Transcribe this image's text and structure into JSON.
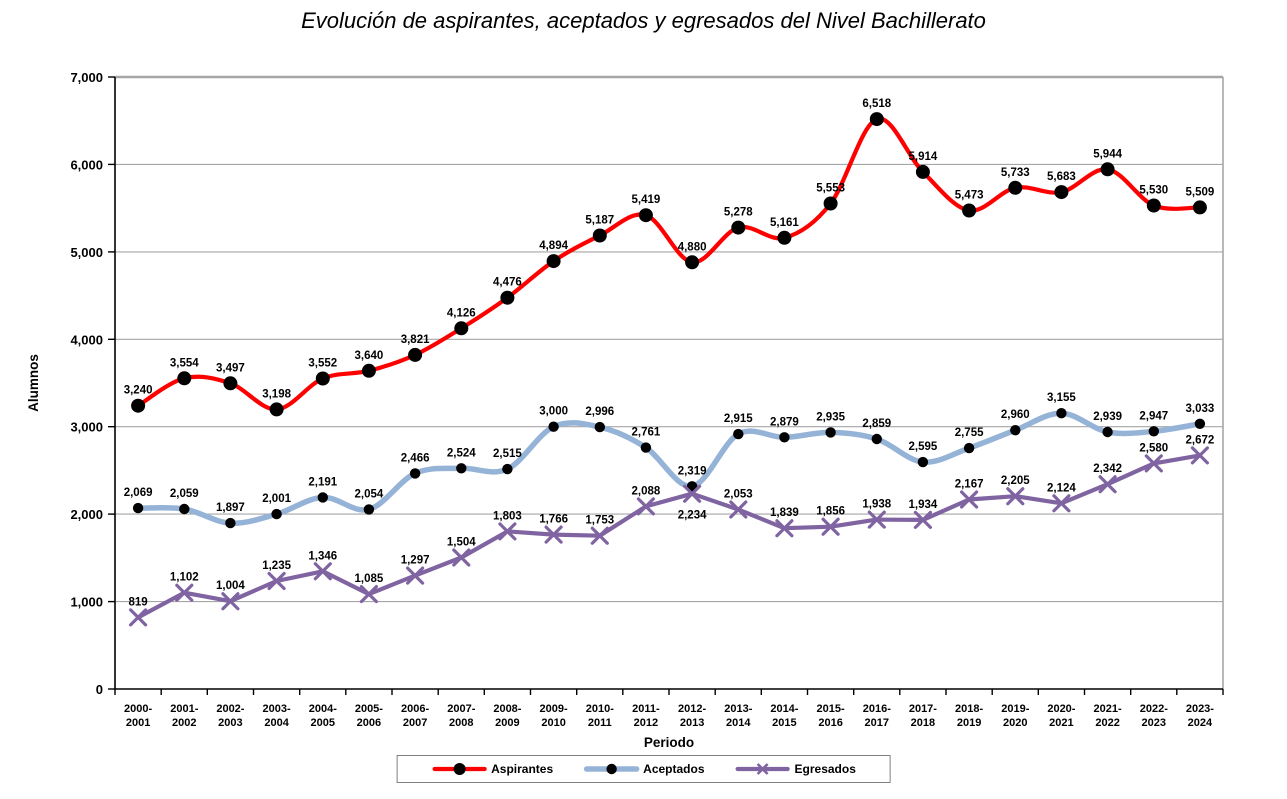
{
  "chart_data": {
    "type": "line",
    "title": "Evolución de aspirantes, aceptados y egresados del Nivel Bachillerato",
    "xlabel": "Periodo",
    "ylabel": "Alumnos",
    "ylim": [
      0,
      7000
    ],
    "ytick_step": 1000,
    "grid": true,
    "legend_position": "bottom",
    "categories": [
      "2000-2001",
      "2001-2002",
      "2002-2003",
      "2003-2004",
      "2004-2005",
      "2005-2006",
      "2006-2007",
      "2007-2008",
      "2008-2009",
      "2009-2010",
      "2010-2011",
      "2011-2012",
      "2012-2013",
      "2013-2014",
      "2014-2015",
      "2015-2016",
      "2016-2017",
      "2017-2018",
      "2018-2019",
      "2019-2020",
      "2020-2021",
      "2021-2022",
      "2022-2023",
      "2023-2024"
    ],
    "series": [
      {
        "name": "Aspirantes",
        "color": "#FF0000",
        "marker": "circle",
        "marker_color": "#000000",
        "marker_size": 7,
        "line_width": 4.2,
        "smooth": true,
        "values": [
          3240,
          3554,
          3497,
          3198,
          3552,
          3640,
          3821,
          4126,
          4476,
          4894,
          5187,
          5419,
          4880,
          5278,
          5161,
          5553,
          6518,
          5914,
          5473,
          5733,
          5683,
          5944,
          5530,
          5509
        ]
      },
      {
        "name": "Aceptados",
        "color": "#95B3D7",
        "marker": "circle",
        "marker_color": "#000000",
        "marker_size": 5.2,
        "line_width": 5.5,
        "smooth": true,
        "values": [
          2069,
          2059,
          1897,
          2001,
          2191,
          2054,
          2466,
          2524,
          2515,
          3000,
          2996,
          2761,
          2319,
          2915,
          2879,
          2935,
          2859,
          2595,
          2755,
          2960,
          3155,
          2939,
          2947,
          3033
        ]
      },
      {
        "name": "Egresados",
        "color": "#8064A2",
        "marker": "x",
        "marker_color": "#8064A2",
        "marker_size": 7.5,
        "line_width": 4.2,
        "smooth": false,
        "values": [
          819,
          1102,
          1004,
          1235,
          1346,
          1085,
          1297,
          1504,
          1803,
          1766,
          1753,
          2088,
          2234,
          2053,
          1839,
          1856,
          1938,
          1934,
          2167,
          2205,
          2124,
          2342,
          2580,
          2672
        ],
        "label_below_indices": [
          12
        ]
      }
    ]
  },
  "style": {
    "grid_color": "#A6A6A6",
    "axis_color": "#000000",
    "plot_border_color": "#A6A6A6",
    "legend_border_color": "#808080",
    "background": "#FFFFFF"
  }
}
